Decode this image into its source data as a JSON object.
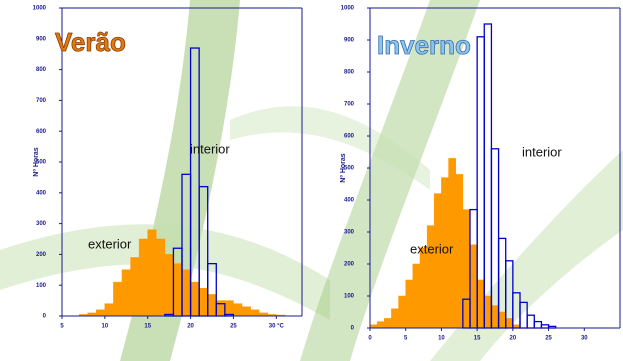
{
  "chart_data": [
    {
      "type": "histogram",
      "title": "Verão",
      "y_label": "Nº Horas",
      "xlim": [
        5,
        33
      ],
      "xticks": [
        5,
        10,
        15,
        20,
        25,
        {
          "value": 30,
          "label": "30 °C"
        }
      ],
      "ylim": [
        0,
        1000
      ],
      "yticks": [
        0,
        100,
        200,
        300,
        400,
        500,
        600,
        700,
        800,
        900,
        1000
      ],
      "series": [
        {
          "name": "exterior",
          "color": "#ff9900",
          "bins": [
            7,
            8,
            9,
            10,
            11,
            12,
            13,
            14,
            15,
            16,
            17,
            18,
            19,
            20,
            21,
            22,
            23,
            24,
            25,
            26,
            27,
            28,
            29,
            30,
            31
          ],
          "values": [
            5,
            10,
            20,
            40,
            110,
            150,
            190,
            250,
            280,
            250,
            200,
            170,
            150,
            110,
            90,
            70,
            50,
            50,
            40,
            30,
            20,
            10,
            5,
            3
          ]
        },
        {
          "name": "interior",
          "color": "#0000cc",
          "bins": [
            17,
            18,
            19,
            20,
            21,
            22,
            23,
            24,
            25
          ],
          "values": [
            5,
            220,
            460,
            870,
            420,
            170,
            40,
            5
          ]
        }
      ]
    },
    {
      "type": "histogram",
      "title": "Inverno",
      "y_label": "Nº Horas",
      "xlim": [
        0,
        35
      ],
      "xticks": [
        0,
        5,
        10,
        15,
        20,
        25,
        30
      ],
      "ylim": [
        0,
        1000
      ],
      "yticks": [
        0,
        100,
        200,
        300,
        400,
        500,
        600,
        700,
        800,
        900,
        1000
      ],
      "series": [
        {
          "name": "exterior",
          "color": "#ff9900",
          "bins": [
            0,
            1,
            2,
            3,
            4,
            5,
            6,
            7,
            8,
            9,
            10,
            11,
            12,
            13,
            14,
            15,
            16,
            17,
            18,
            19,
            20,
            21
          ],
          "values": [
            10,
            20,
            30,
            60,
            100,
            150,
            200,
            250,
            320,
            420,
            470,
            530,
            480,
            370,
            260,
            150,
            100,
            70,
            50,
            30,
            10
          ]
        },
        {
          "name": "interior",
          "color": "#0000cc",
          "bins": [
            13,
            14,
            15,
            16,
            17,
            18,
            19,
            20,
            21,
            22,
            23,
            24,
            25,
            26
          ],
          "values": [
            90,
            370,
            910,
            950,
            560,
            280,
            210,
            110,
            80,
            40,
            20,
            10,
            5
          ]
        }
      ]
    }
  ]
}
